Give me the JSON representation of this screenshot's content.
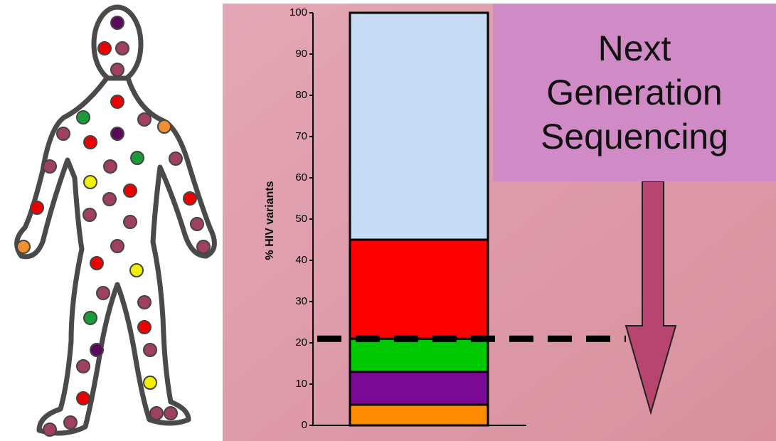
{
  "chart_data": {
    "type": "stacked-bar",
    "y_label": "% HIV variants",
    "annotation": "Next Generation Sequencing",
    "categories": [
      null
    ],
    "series": [
      {
        "color": "#ff8c00",
        "values": [
          5
        ]
      },
      {
        "color": "#7a0a96",
        "values": [
          8
        ]
      },
      {
        "color": "#00c800",
        "values": [
          8
        ]
      },
      {
        "color": "#ff0000",
        "values": [
          24
        ]
      },
      {
        "color": "#c6dcf4",
        "values": [
          55
        ]
      }
    ],
    "threshold_line": 21,
    "ylim": [
      0,
      100
    ],
    "yticks": [
      0,
      10,
      20,
      30,
      40,
      50,
      60,
      70,
      80,
      90,
      100
    ]
  }
}
